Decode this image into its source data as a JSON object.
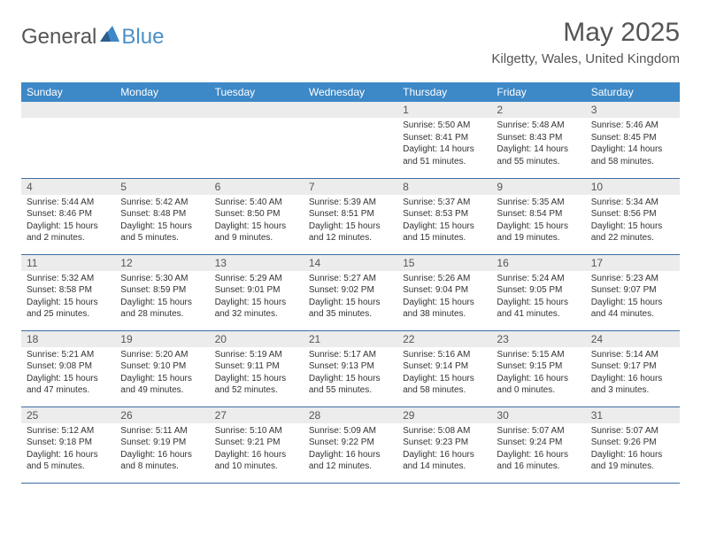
{
  "logo": {
    "general": "General",
    "blue": "Blue"
  },
  "title": "May 2025",
  "location": "Kilgetty, Wales, United Kingdom",
  "colors": {
    "header_bg": "#3d88c7",
    "header_text": "#ffffff",
    "daynum_bg": "#ececec",
    "text": "#333333",
    "rule": "#3d6fa3",
    "logo_blue": "#4a90c7"
  },
  "weekdays": [
    "Sunday",
    "Monday",
    "Tuesday",
    "Wednesday",
    "Thursday",
    "Friday",
    "Saturday"
  ],
  "weeks": [
    [
      null,
      null,
      null,
      null,
      {
        "n": "1",
        "sr": "Sunrise: 5:50 AM",
        "ss": "Sunset: 8:41 PM",
        "d1": "Daylight: 14 hours",
        "d2": "and 51 minutes."
      },
      {
        "n": "2",
        "sr": "Sunrise: 5:48 AM",
        "ss": "Sunset: 8:43 PM",
        "d1": "Daylight: 14 hours",
        "d2": "and 55 minutes."
      },
      {
        "n": "3",
        "sr": "Sunrise: 5:46 AM",
        "ss": "Sunset: 8:45 PM",
        "d1": "Daylight: 14 hours",
        "d2": "and 58 minutes."
      }
    ],
    [
      {
        "n": "4",
        "sr": "Sunrise: 5:44 AM",
        "ss": "Sunset: 8:46 PM",
        "d1": "Daylight: 15 hours",
        "d2": "and 2 minutes."
      },
      {
        "n": "5",
        "sr": "Sunrise: 5:42 AM",
        "ss": "Sunset: 8:48 PM",
        "d1": "Daylight: 15 hours",
        "d2": "and 5 minutes."
      },
      {
        "n": "6",
        "sr": "Sunrise: 5:40 AM",
        "ss": "Sunset: 8:50 PM",
        "d1": "Daylight: 15 hours",
        "d2": "and 9 minutes."
      },
      {
        "n": "7",
        "sr": "Sunrise: 5:39 AM",
        "ss": "Sunset: 8:51 PM",
        "d1": "Daylight: 15 hours",
        "d2": "and 12 minutes."
      },
      {
        "n": "8",
        "sr": "Sunrise: 5:37 AM",
        "ss": "Sunset: 8:53 PM",
        "d1": "Daylight: 15 hours",
        "d2": "and 15 minutes."
      },
      {
        "n": "9",
        "sr": "Sunrise: 5:35 AM",
        "ss": "Sunset: 8:54 PM",
        "d1": "Daylight: 15 hours",
        "d2": "and 19 minutes."
      },
      {
        "n": "10",
        "sr": "Sunrise: 5:34 AM",
        "ss": "Sunset: 8:56 PM",
        "d1": "Daylight: 15 hours",
        "d2": "and 22 minutes."
      }
    ],
    [
      {
        "n": "11",
        "sr": "Sunrise: 5:32 AM",
        "ss": "Sunset: 8:58 PM",
        "d1": "Daylight: 15 hours",
        "d2": "and 25 minutes."
      },
      {
        "n": "12",
        "sr": "Sunrise: 5:30 AM",
        "ss": "Sunset: 8:59 PM",
        "d1": "Daylight: 15 hours",
        "d2": "and 28 minutes."
      },
      {
        "n": "13",
        "sr": "Sunrise: 5:29 AM",
        "ss": "Sunset: 9:01 PM",
        "d1": "Daylight: 15 hours",
        "d2": "and 32 minutes."
      },
      {
        "n": "14",
        "sr": "Sunrise: 5:27 AM",
        "ss": "Sunset: 9:02 PM",
        "d1": "Daylight: 15 hours",
        "d2": "and 35 minutes."
      },
      {
        "n": "15",
        "sr": "Sunrise: 5:26 AM",
        "ss": "Sunset: 9:04 PM",
        "d1": "Daylight: 15 hours",
        "d2": "and 38 minutes."
      },
      {
        "n": "16",
        "sr": "Sunrise: 5:24 AM",
        "ss": "Sunset: 9:05 PM",
        "d1": "Daylight: 15 hours",
        "d2": "and 41 minutes."
      },
      {
        "n": "17",
        "sr": "Sunrise: 5:23 AM",
        "ss": "Sunset: 9:07 PM",
        "d1": "Daylight: 15 hours",
        "d2": "and 44 minutes."
      }
    ],
    [
      {
        "n": "18",
        "sr": "Sunrise: 5:21 AM",
        "ss": "Sunset: 9:08 PM",
        "d1": "Daylight: 15 hours",
        "d2": "and 47 minutes."
      },
      {
        "n": "19",
        "sr": "Sunrise: 5:20 AM",
        "ss": "Sunset: 9:10 PM",
        "d1": "Daylight: 15 hours",
        "d2": "and 49 minutes."
      },
      {
        "n": "20",
        "sr": "Sunrise: 5:19 AM",
        "ss": "Sunset: 9:11 PM",
        "d1": "Daylight: 15 hours",
        "d2": "and 52 minutes."
      },
      {
        "n": "21",
        "sr": "Sunrise: 5:17 AM",
        "ss": "Sunset: 9:13 PM",
        "d1": "Daylight: 15 hours",
        "d2": "and 55 minutes."
      },
      {
        "n": "22",
        "sr": "Sunrise: 5:16 AM",
        "ss": "Sunset: 9:14 PM",
        "d1": "Daylight: 15 hours",
        "d2": "and 58 minutes."
      },
      {
        "n": "23",
        "sr": "Sunrise: 5:15 AM",
        "ss": "Sunset: 9:15 PM",
        "d1": "Daylight: 16 hours",
        "d2": "and 0 minutes."
      },
      {
        "n": "24",
        "sr": "Sunrise: 5:14 AM",
        "ss": "Sunset: 9:17 PM",
        "d1": "Daylight: 16 hours",
        "d2": "and 3 minutes."
      }
    ],
    [
      {
        "n": "25",
        "sr": "Sunrise: 5:12 AM",
        "ss": "Sunset: 9:18 PM",
        "d1": "Daylight: 16 hours",
        "d2": "and 5 minutes."
      },
      {
        "n": "26",
        "sr": "Sunrise: 5:11 AM",
        "ss": "Sunset: 9:19 PM",
        "d1": "Daylight: 16 hours",
        "d2": "and 8 minutes."
      },
      {
        "n": "27",
        "sr": "Sunrise: 5:10 AM",
        "ss": "Sunset: 9:21 PM",
        "d1": "Daylight: 16 hours",
        "d2": "and 10 minutes."
      },
      {
        "n": "28",
        "sr": "Sunrise: 5:09 AM",
        "ss": "Sunset: 9:22 PM",
        "d1": "Daylight: 16 hours",
        "d2": "and 12 minutes."
      },
      {
        "n": "29",
        "sr": "Sunrise: 5:08 AM",
        "ss": "Sunset: 9:23 PM",
        "d1": "Daylight: 16 hours",
        "d2": "and 14 minutes."
      },
      {
        "n": "30",
        "sr": "Sunrise: 5:07 AM",
        "ss": "Sunset: 9:24 PM",
        "d1": "Daylight: 16 hours",
        "d2": "and 16 minutes."
      },
      {
        "n": "31",
        "sr": "Sunrise: 5:07 AM",
        "ss": "Sunset: 9:26 PM",
        "d1": "Daylight: 16 hours",
        "d2": "and 19 minutes."
      }
    ]
  ]
}
